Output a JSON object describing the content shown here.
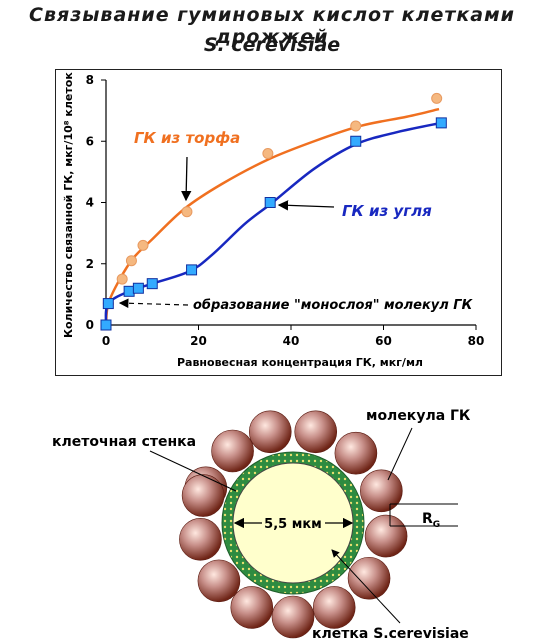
{
  "title_line1": "Связывание гуминовых кислот клетками дрожжей",
  "title_line2": "S. cerevisiae",
  "chart_data": {
    "type": "line",
    "title": "Связывание гуминовых кислот клетками дрожжей S. cerevisiae",
    "xlabel": "Равновесная концентрация ГК, мкг/мл",
    "ylabel": "Количество связанной ГК, мкг/10⁸ клеток",
    "xlim": [
      0,
      80
    ],
    "ylim": [
      0,
      8
    ],
    "x_ticks": [
      "0",
      "20",
      "40",
      "60",
      "80"
    ],
    "y_ticks": [
      "0",
      "2",
      "4",
      "6",
      "8"
    ],
    "series": [
      {
        "name": "ГК из торфа",
        "color": "#f07020",
        "marker": "circle",
        "marker_color": "#f5b880",
        "points": [
          [
            0,
            0
          ],
          [
            0.5,
            0.7
          ],
          [
            3.5,
            1.5
          ],
          [
            5.5,
            2.1
          ],
          [
            8,
            2.6
          ],
          [
            17.5,
            3.7
          ],
          [
            35,
            5.6
          ],
          [
            54,
            6.5
          ],
          [
            71.5,
            7.4
          ]
        ],
        "curve": [
          [
            0,
            0
          ],
          [
            0.5,
            0.7
          ],
          [
            3,
            1.5
          ],
          [
            6,
            2.2
          ],
          [
            10,
            2.8
          ],
          [
            17,
            3.8
          ],
          [
            25,
            4.6
          ],
          [
            35,
            5.4
          ],
          [
            45,
            6.0
          ],
          [
            55,
            6.5
          ],
          [
            65,
            6.8
          ],
          [
            72,
            7.05
          ]
        ]
      },
      {
        "name": "ГК из угля",
        "color": "#1828c0",
        "marker": "square",
        "marker_color": "#33aaff",
        "points": [
          [
            0,
            0
          ],
          [
            0.5,
            0.7
          ],
          [
            5,
            1.1
          ],
          [
            7,
            1.2
          ],
          [
            10,
            1.35
          ],
          [
            18.5,
            1.8
          ],
          [
            35.5,
            4.0
          ],
          [
            54,
            6.0
          ],
          [
            72.5,
            6.6
          ]
        ],
        "curve": [
          [
            0,
            0
          ],
          [
            0.5,
            0.7
          ],
          [
            5,
            1.1
          ],
          [
            10,
            1.35
          ],
          [
            18,
            1.75
          ],
          [
            23,
            2.3
          ],
          [
            30,
            3.3
          ],
          [
            36,
            4.0
          ],
          [
            45,
            5.1
          ],
          [
            54,
            5.9
          ],
          [
            63,
            6.3
          ],
          [
            72.5,
            6.6
          ]
        ]
      }
    ],
    "annotations": [
      {
        "text": "образование \"монослоя\" молекул ГК",
        "y": 0.7
      },
      {
        "text": "ГК из торфа"
      },
      {
        "text": "ГК из угля"
      }
    ]
  },
  "diagram": {
    "label_molecule": "молекула ГК",
    "label_wall": "клеточная стенка",
    "label_size": "5,5 мкм",
    "label_cell": "клетка S.cerevisiae",
    "label_rg": "R",
    "label_rg_sub": "G",
    "colors": {
      "cell_fill": "#ffffcc",
      "wall_fill": "#2e8b40",
      "wall_dots": "#e8e070",
      "molecule_dark": "#7a2a1a",
      "molecule_light": "#ffe8e0"
    }
  }
}
